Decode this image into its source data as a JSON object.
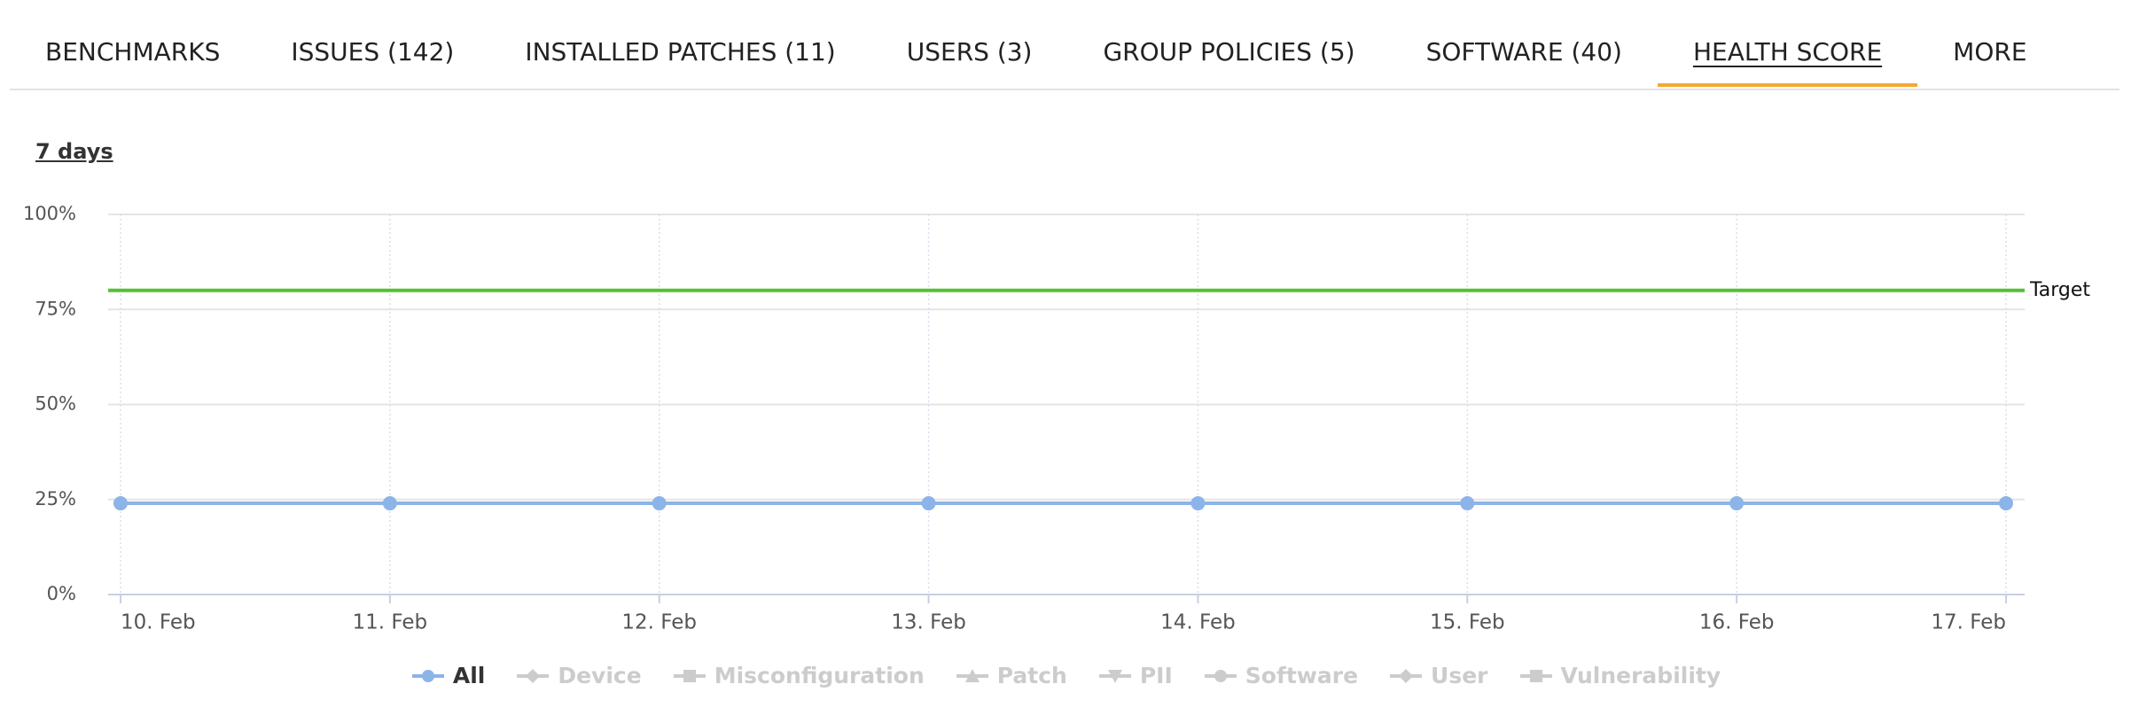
{
  "tabs": [
    "BENCHMARKS",
    "ISSUES (142)",
    "INSTALLED PATCHES (11)",
    "USERS (3)",
    "GROUP POLICIES (5)",
    "SOFTWARE (40)",
    "HEALTH SCORE",
    "MORE"
  ],
  "active_tab": 6,
  "range_label": "7 days",
  "chart_data": {
    "type": "line",
    "categories": [
      "10. Feb",
      "11. Feb",
      "12. Feb",
      "13. Feb",
      "14. Feb",
      "15. Feb",
      "16. Feb",
      "17. Feb"
    ],
    "ylim": [
      0,
      100
    ],
    "yticks": [
      {
        "value": 0,
        "label": "0%"
      },
      {
        "value": 25,
        "label": "25%"
      },
      {
        "value": 50,
        "label": "50%"
      },
      {
        "value": 75,
        "label": "75%"
      },
      {
        "value": 100,
        "label": "100%"
      }
    ],
    "grid": true,
    "target": {
      "label": "Target",
      "value": 80,
      "color": "#52c234"
    },
    "series": [
      {
        "name": "All",
        "color": "#8cb4e8",
        "marker": "circle",
        "visible": true,
        "values": [
          24,
          24,
          24,
          24,
          24,
          24,
          24,
          24
        ]
      },
      {
        "name": "Device",
        "marker": "diamond",
        "visible": false
      },
      {
        "name": "Misconfiguration",
        "marker": "square",
        "visible": false
      },
      {
        "name": "Patch",
        "marker": "triangle",
        "visible": false
      },
      {
        "name": "PII",
        "marker": "triangle-down",
        "visible": false
      },
      {
        "name": "Software",
        "marker": "circle",
        "visible": false
      },
      {
        "name": "User",
        "marker": "diamond",
        "visible": false
      },
      {
        "name": "Vulnerability",
        "marker": "square",
        "visible": false
      }
    ]
  }
}
